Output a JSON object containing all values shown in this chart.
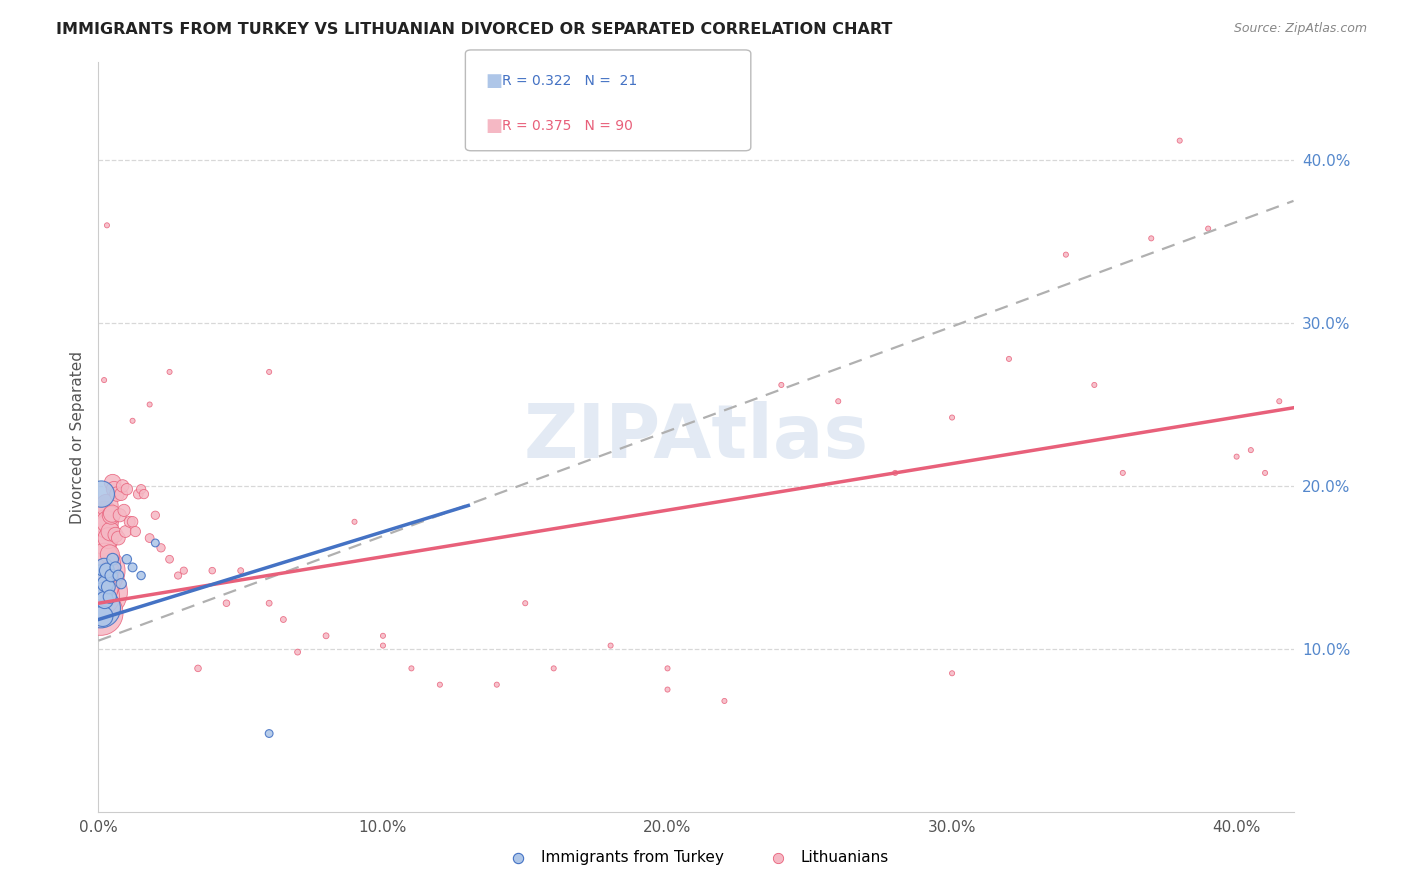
{
  "title": "IMMIGRANTS FROM TURKEY VS LITHUANIAN DIVORCED OR SEPARATED CORRELATION CHART",
  "source": "Source: ZipAtlas.com",
  "ylabel": "Divorced or Separated",
  "xlim": [
    0.0,
    0.42
  ],
  "ylim": [
    0.0,
    0.46
  ],
  "xtick_labels": [
    "0.0%",
    "10.0%",
    "20.0%",
    "30.0%",
    "40.0%"
  ],
  "xtick_vals": [
    0.0,
    0.1,
    0.2,
    0.3,
    0.4
  ],
  "ytick_labels": [
    "10.0%",
    "20.0%",
    "30.0%",
    "40.0%"
  ],
  "ytick_vals": [
    0.1,
    0.2,
    0.3,
    0.4
  ],
  "legend_label1": "Immigrants from Turkey",
  "legend_label2": "Lithuanians",
  "color_blue": "#aec6e8",
  "color_pink": "#f5b8c4",
  "line_blue": "#4472c4",
  "line_pink": "#e8607a",
  "line_dashed_color": "#b0b0b0",
  "background": "#ffffff",
  "grid_color": "#d8d8d8",
  "turkey_x": [
    0.0008,
    0.001,
    0.0012,
    0.0015,
    0.0018,
    0.002,
    0.0022,
    0.0025,
    0.003,
    0.0035,
    0.004,
    0.0045,
    0.005,
    0.006,
    0.007,
    0.008,
    0.01,
    0.012,
    0.015,
    0.02,
    0.06
  ],
  "turkey_y": [
    0.125,
    0.195,
    0.145,
    0.12,
    0.135,
    0.15,
    0.13,
    0.14,
    0.148,
    0.138,
    0.132,
    0.145,
    0.155,
    0.15,
    0.145,
    0.14,
    0.155,
    0.15,
    0.145,
    0.165,
    0.048
  ],
  "turkey_s": [
    180,
    80,
    55,
    48,
    42,
    38,
    34,
    30,
    26,
    22,
    20,
    18,
    16,
    14,
    13,
    12,
    10,
    9,
    8,
    7,
    7
  ],
  "lit_x": [
    0.0005,
    0.0007,
    0.0008,
    0.0009,
    0.001,
    0.001,
    0.0012,
    0.0013,
    0.0015,
    0.0016,
    0.0018,
    0.0019,
    0.002,
    0.0022,
    0.0024,
    0.0025,
    0.0028,
    0.003,
    0.0032,
    0.0035,
    0.0038,
    0.004,
    0.0042,
    0.0045,
    0.0048,
    0.005,
    0.0055,
    0.006,
    0.0065,
    0.007,
    0.0075,
    0.008,
    0.0085,
    0.009,
    0.0095,
    0.01,
    0.011,
    0.012,
    0.013,
    0.014,
    0.015,
    0.016,
    0.018,
    0.02,
    0.022,
    0.025,
    0.028,
    0.03,
    0.035,
    0.04,
    0.045,
    0.05,
    0.06,
    0.065,
    0.07,
    0.08,
    0.09,
    0.1,
    0.11,
    0.12,
    0.14,
    0.16,
    0.18,
    0.2,
    0.22,
    0.24,
    0.26,
    0.28,
    0.3,
    0.32,
    0.34,
    0.35,
    0.36,
    0.37,
    0.38,
    0.39,
    0.4,
    0.405,
    0.41,
    0.415,
    0.002,
    0.003,
    0.012,
    0.018,
    0.025,
    0.06,
    0.1,
    0.15,
    0.2,
    0.3
  ],
  "lit_y": [
    0.135,
    0.148,
    0.122,
    0.142,
    0.152,
    0.132,
    0.14,
    0.147,
    0.157,
    0.137,
    0.167,
    0.147,
    0.177,
    0.157,
    0.183,
    0.178,
    0.175,
    0.188,
    0.178,
    0.168,
    0.148,
    0.158,
    0.172,
    0.182,
    0.183,
    0.202,
    0.198,
    0.17,
    0.195,
    0.168,
    0.182,
    0.195,
    0.2,
    0.185,
    0.172,
    0.198,
    0.178,
    0.178,
    0.172,
    0.195,
    0.198,
    0.195,
    0.168,
    0.182,
    0.162,
    0.155,
    0.145,
    0.148,
    0.088,
    0.148,
    0.128,
    0.148,
    0.128,
    0.118,
    0.098,
    0.108,
    0.178,
    0.102,
    0.088,
    0.078,
    0.078,
    0.088,
    0.102,
    0.088,
    0.068,
    0.262,
    0.252,
    0.208,
    0.242,
    0.278,
    0.342,
    0.262,
    0.208,
    0.352,
    0.412,
    0.358,
    0.218,
    0.222,
    0.208,
    0.252,
    0.265,
    0.36,
    0.24,
    0.25,
    0.27,
    0.27,
    0.108,
    0.128,
    0.075,
    0.085
  ],
  "lit_s": [
    350,
    280,
    230,
    190,
    170,
    155,
    145,
    125,
    115,
    105,
    95,
    88,
    82,
    76,
    72,
    68,
    62,
    58,
    55,
    50,
    46,
    42,
    40,
    37,
    34,
    32,
    28,
    26,
    24,
    22,
    20,
    19,
    18,
    17,
    16,
    15,
    14,
    13,
    12,
    11,
    10,
    10,
    9,
    8,
    8,
    7,
    6,
    6,
    5,
    5,
    5,
    4,
    4,
    4,
    4,
    4,
    3,
    3,
    3,
    3,
    3,
    3,
    3,
    3,
    3,
    3,
    3,
    3,
    3,
    3,
    3,
    3,
    3,
    3,
    3,
    3,
    3,
    3,
    3,
    3,
    3,
    3,
    3,
    3,
    3,
    3,
    3,
    3,
    3,
    3
  ],
  "pink_line_x0": 0.0,
  "pink_line_y0": 0.128,
  "pink_line_x1": 0.42,
  "pink_line_y1": 0.248,
  "blue_line_x0": 0.0,
  "blue_line_y0": 0.118,
  "blue_line_x1": 0.13,
  "blue_line_y1": 0.188,
  "dash_line_x0": 0.0,
  "dash_line_y0": 0.105,
  "dash_line_x1": 0.42,
  "dash_line_y1": 0.375
}
